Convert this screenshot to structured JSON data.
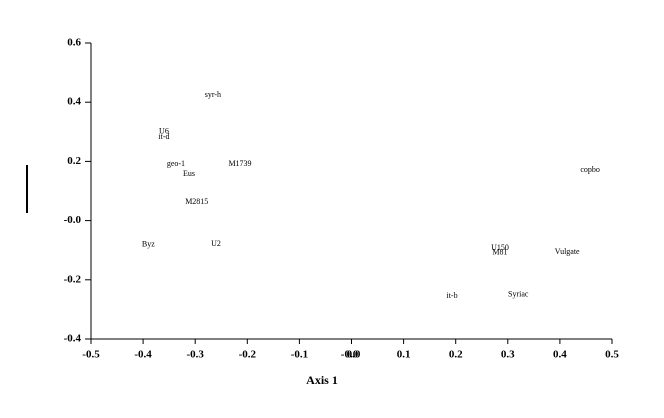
{
  "chart_data": {
    "type": "scatter",
    "x_label": "Axis 1",
    "points": [
      {
        "label": "syr-h",
        "x": -0.266,
        "y": 0.424
      },
      {
        "label": "U6",
        "x": -0.36,
        "y": 0.3
      },
      {
        "label": "it-d",
        "x": -0.36,
        "y": 0.282
      },
      {
        "label": "geo-1",
        "x": -0.337,
        "y": 0.191
      },
      {
        "label": "Eus",
        "x": -0.312,
        "y": 0.157
      },
      {
        "label": "M1739",
        "x": -0.214,
        "y": 0.191
      },
      {
        "label": "M2815",
        "x": -0.297,
        "y": 0.063
      },
      {
        "label": "U2",
        "x": -0.26,
        "y": -0.079
      },
      {
        "label": "Byz",
        "x": -0.39,
        "y": -0.082
      },
      {
        "label": "U150",
        "x": 0.285,
        "y": -0.093
      },
      {
        "label": "M81",
        "x": 0.285,
        "y": -0.109
      },
      {
        "label": "Vulgate",
        "x": 0.414,
        "y": -0.106
      },
      {
        "label": "copbo",
        "x": 0.458,
        "y": 0.171
      },
      {
        "label": "it-b",
        "x": 0.193,
        "y": -0.255
      },
      {
        "label": "Syriac",
        "x": 0.32,
        "y": -0.251
      }
    ],
    "xlim": [
      -0.5,
      0.5
    ],
    "xticks": [
      -0.5,
      -0.4,
      -0.3,
      -0.2,
      -0.1,
      {
        "value": 0,
        "label": "-0.0"
      },
      {
        "value": 0,
        "label": "0.0"
      },
      0.1,
      0.2,
      0.3,
      0.4,
      0.5
    ],
    "ylim": [
      -0.4,
      0.6
    ],
    "yticks": [
      {
        "value": -0.4,
        "label": "-0.4"
      },
      {
        "value": -0.2,
        "label": "-0.2"
      },
      {
        "value": 0,
        "label": "-0.0"
      },
      0.2,
      0.4,
      0.6
    ]
  }
}
